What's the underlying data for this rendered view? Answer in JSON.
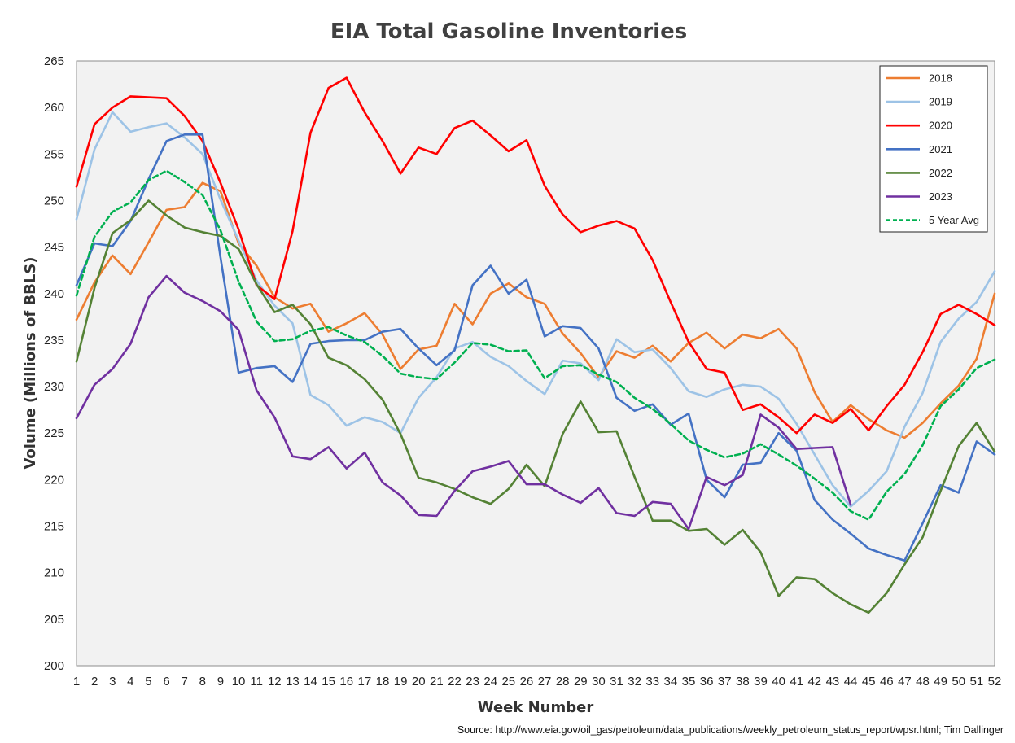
{
  "chart_data": {
    "type": "line",
    "title": "EIA Total Gasoline Inventories",
    "xlabel": "Week Number",
    "ylabel": "Volume (Millions of BBLS)",
    "source": "Source: http://www.eia.gov/oil_gas/petroleum/data_publications/weekly_petroleum_status_report/wpsr.html; Tim Dallinger",
    "x": [
      1,
      2,
      3,
      4,
      5,
      6,
      7,
      8,
      9,
      10,
      11,
      12,
      13,
      14,
      15,
      16,
      17,
      18,
      19,
      20,
      21,
      22,
      23,
      24,
      25,
      26,
      27,
      28,
      29,
      30,
      31,
      32,
      33,
      34,
      35,
      36,
      37,
      38,
      39,
      40,
      41,
      42,
      43,
      44,
      45,
      46,
      47,
      48,
      49,
      50,
      51,
      52
    ],
    "xlim": [
      1,
      52
    ],
    "ylim": [
      200,
      265
    ],
    "yticks": [
      200,
      205,
      210,
      215,
      220,
      225,
      230,
      235,
      240,
      245,
      250,
      255,
      260,
      265
    ],
    "grid": false,
    "legend_position": "top-right",
    "series": [
      {
        "name": "2018",
        "color": "#ED7D31",
        "dashed": false,
        "values": [
          237.2,
          241.2,
          244.1,
          242.1,
          245.5,
          249.0,
          249.3,
          251.9,
          251.0,
          245.4,
          243.0,
          239.6,
          238.4,
          238.9,
          235.9,
          236.8,
          237.9,
          235.6,
          231.9,
          234.0,
          234.4,
          238.9,
          236.7,
          240.0,
          241.1,
          239.6,
          238.9,
          235.7,
          233.6,
          231.0,
          233.8,
          233.1,
          234.4,
          232.7,
          234.7,
          235.8,
          234.1,
          235.6,
          235.2,
          236.2,
          234.1,
          229.4,
          226.2,
          228.0,
          226.5,
          225.3,
          224.5,
          226.1,
          228.2,
          230.1,
          233.0,
          240.0
        ]
      },
      {
        "name": "2019",
        "color": "#9DC3E6",
        "dashed": false,
        "values": [
          248.0,
          255.5,
          259.5,
          257.4,
          257.9,
          258.3,
          256.8,
          255.0,
          250.1,
          245.7,
          241.4,
          238.7,
          236.8,
          229.1,
          228.0,
          225.8,
          226.7,
          226.2,
          225.0,
          228.8,
          231.0,
          234.1,
          234.8,
          233.2,
          232.2,
          230.6,
          229.2,
          232.8,
          232.5,
          230.7,
          235.1,
          233.7,
          234.0,
          232.0,
          229.5,
          228.9,
          229.7,
          230.2,
          230.0,
          228.7,
          226.0,
          222.7,
          219.4,
          217.1,
          218.8,
          220.9,
          225.7,
          229.3,
          234.8,
          237.3,
          239.1,
          242.4
        ]
      },
      {
        "name": "2020",
        "color": "#FF0000",
        "dashed": false,
        "values": [
          251.5,
          258.2,
          260.0,
          261.2,
          261.1,
          261.0,
          259.1,
          256.4,
          251.9,
          246.9,
          240.9,
          239.4,
          246.7,
          257.3,
          262.1,
          263.2,
          259.5,
          256.4,
          252.9,
          255.7,
          255.0,
          257.8,
          258.6,
          257.0,
          255.3,
          256.5,
          251.6,
          248.5,
          246.6,
          247.3,
          247.8,
          247.0,
          243.6,
          239.1,
          234.8,
          231.9,
          231.5,
          227.5,
          228.1,
          226.7,
          225.0,
          227.0,
          226.1,
          227.6,
          225.3,
          227.9,
          230.2,
          233.7,
          237.8,
          238.8,
          237.8,
          236.6
        ]
      },
      {
        "name": "2021",
        "color": "#4472C4",
        "dashed": false,
        "values": [
          240.9,
          245.4,
          245.1,
          247.8,
          252.3,
          256.4,
          257.1,
          257.1,
          243.9,
          231.5,
          232.0,
          232.2,
          230.5,
          234.6,
          234.9,
          235.0,
          235.0,
          235.9,
          236.2,
          234.1,
          232.3,
          233.9,
          240.9,
          243.0,
          240.0,
          241.5,
          235.4,
          236.5,
          236.3,
          234.1,
          228.8,
          227.4,
          228.1,
          225.9,
          227.1,
          220.0,
          218.1,
          221.6,
          221.8,
          225.0,
          223.1,
          217.8,
          215.7,
          214.2,
          212.6,
          211.9,
          211.3,
          215.3,
          219.4,
          218.6,
          224.1,
          222.7
        ]
      },
      {
        "name": "2022",
        "color": "#548235",
        "dashed": false,
        "values": [
          232.7,
          240.6,
          246.5,
          247.9,
          250.0,
          248.4,
          247.1,
          246.6,
          246.2,
          244.8,
          241.0,
          238.0,
          238.8,
          236.7,
          233.1,
          232.3,
          230.8,
          228.6,
          224.9,
          220.2,
          219.7,
          219.0,
          218.1,
          217.4,
          219.0,
          221.6,
          219.3,
          224.9,
          228.4,
          225.1,
          225.2,
          220.3,
          215.6,
          215.6,
          214.5,
          214.7,
          213.0,
          214.6,
          212.2,
          207.5,
          209.5,
          209.3,
          207.8,
          206.6,
          205.7,
          207.8,
          210.9,
          213.8,
          218.8,
          223.6,
          226.1,
          223.0
        ]
      },
      {
        "name": "2023",
        "color": "#7030A0",
        "dashed": false,
        "values": [
          226.6,
          230.2,
          231.9,
          234.6,
          239.6,
          241.9,
          240.1,
          239.2,
          238.1,
          236.1,
          229.6,
          226.7,
          222.5,
          222.2,
          223.5,
          221.2,
          222.9,
          219.7,
          218.3,
          216.2,
          216.1,
          218.8,
          220.9,
          221.4,
          222.0,
          219.5,
          219.5,
          218.4,
          217.5,
          219.1,
          216.4,
          216.1,
          217.6,
          217.4,
          214.7,
          220.3,
          219.4,
          220.5,
          227.0,
          225.6,
          223.3,
          223.4,
          223.5,
          217.3,
          null,
          null,
          null,
          null,
          null,
          null,
          null,
          null
        ]
      },
      {
        "name": "5 Year Avg",
        "color": "#00B050",
        "dashed": true,
        "values": [
          239.8,
          246.1,
          248.8,
          249.8,
          252.2,
          253.2,
          252.0,
          250.6,
          246.8,
          241.3,
          237.0,
          234.9,
          235.1,
          236.0,
          236.4,
          235.5,
          234.8,
          233.3,
          231.4,
          231.0,
          230.8,
          232.6,
          234.7,
          234.5,
          233.8,
          233.9,
          230.9,
          232.2,
          232.3,
          231.3,
          230.5,
          228.8,
          227.6,
          226.0,
          224.2,
          223.2,
          222.4,
          222.8,
          223.8,
          222.7,
          221.5,
          220.1,
          218.6,
          216.6,
          215.7,
          218.7,
          220.6,
          223.7,
          227.9,
          229.7,
          232.0,
          232.9
        ]
      }
    ]
  }
}
